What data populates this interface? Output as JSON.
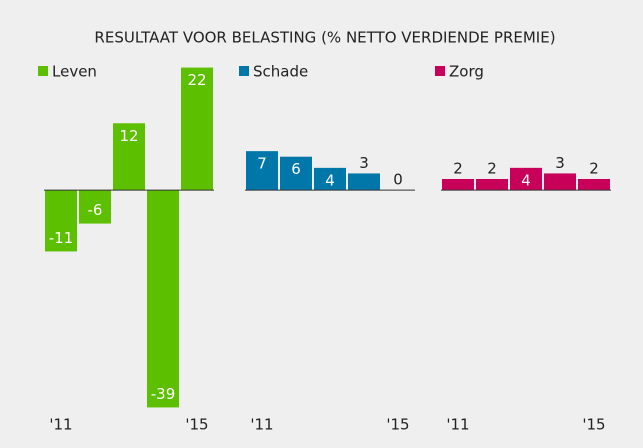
{
  "title": "RESULTAAT VOOR BELASTING (% NETTO VERDIENDE PREMIE)",
  "chart_data": [
    {
      "type": "bar",
      "categories": [
        "'11",
        null,
        null,
        null,
        "'15"
      ],
      "ylim": [
        -40,
        23
      ],
      "series": [
        {
          "name": "Leven",
          "color": "#5cbf00",
          "values": [
            -11,
            -6,
            12,
            -39,
            22
          ]
        }
      ]
    },
    {
      "type": "bar",
      "categories": [
        "'11",
        null,
        null,
        null,
        "'15"
      ],
      "ylim": [
        -40,
        23
      ],
      "series": [
        {
          "name": "Schade",
          "color": "#0077a8",
          "values": [
            7,
            6,
            4,
            3,
            0
          ]
        }
      ]
    },
    {
      "type": "bar",
      "categories": [
        "'11",
        null,
        null,
        null,
        "'15"
      ],
      "ylim": [
        -40,
        23
      ],
      "series": [
        {
          "name": "Zorg",
          "color": "#c8005a",
          "values": [
            2,
            2,
            4,
            3,
            2
          ]
        }
      ]
    }
  ]
}
